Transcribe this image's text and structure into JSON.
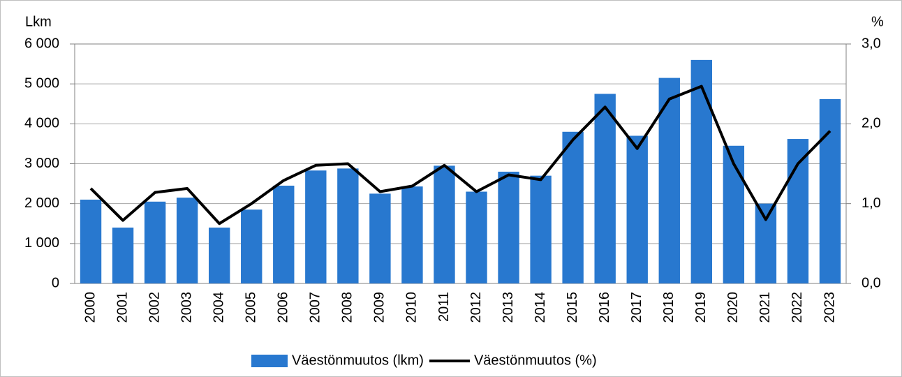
{
  "chart_data": {
    "type": "bar-line",
    "y_label": "Lkm",
    "y2_label": "%",
    "categories": [
      "2000",
      "2001",
      "2002",
      "2003",
      "2004",
      "2005",
      "2006",
      "2007",
      "2008",
      "2009",
      "2010",
      "2011",
      "2012",
      "2013",
      "2014",
      "2015",
      "2016",
      "2017",
      "2018",
      "2019",
      "2020",
      "2021",
      "2022",
      "2023"
    ],
    "series": [
      {
        "name": "Väestönmuutos (lkm)",
        "color": "#2878cf",
        "kind": "bar",
        "values": [
          2100,
          1400,
          2050,
          2150,
          1400,
          1850,
          2450,
          2830,
          2880,
          2250,
          2430,
          2950,
          2300,
          2800,
          2700,
          3800,
          4750,
          3700,
          5150,
          5600,
          3450,
          2000,
          3620,
          4620
        ]
      },
      {
        "name": "Väestönmuutos (%)",
        "color": "#000000",
        "kind": "line",
        "axis": "y2",
        "values": [
          1.19,
          0.79,
          1.14,
          1.19,
          0.75,
          1.0,
          1.29,
          1.48,
          1.5,
          1.15,
          1.22,
          1.48,
          1.15,
          1.36,
          1.3,
          1.8,
          2.21,
          1.69,
          2.31,
          2.47,
          1.5,
          0.8,
          1.5,
          1.91
        ]
      }
    ],
    "ylim": [
      0,
      6000
    ],
    "yticks": [
      0,
      {
        "value": 1000,
        "label": "1 000"
      },
      {
        "value": 2000,
        "label": "2 000"
      },
      {
        "value": 3000,
        "label": "3 000"
      },
      {
        "value": 4000,
        "label": "4 000"
      },
      {
        "value": 5000,
        "label": "5 000"
      },
      {
        "value": 6000,
        "label": "6 000"
      }
    ],
    "y2lim": [
      0,
      3
    ],
    "y2ticks": [
      {
        "value": 0,
        "label": "0,0"
      },
      {
        "value": 1,
        "label": "1,0"
      },
      {
        "value": 2,
        "label": "2,0"
      },
      {
        "value": 3,
        "label": "3,0"
      }
    ],
    "grid": true,
    "legend": "bottom"
  }
}
